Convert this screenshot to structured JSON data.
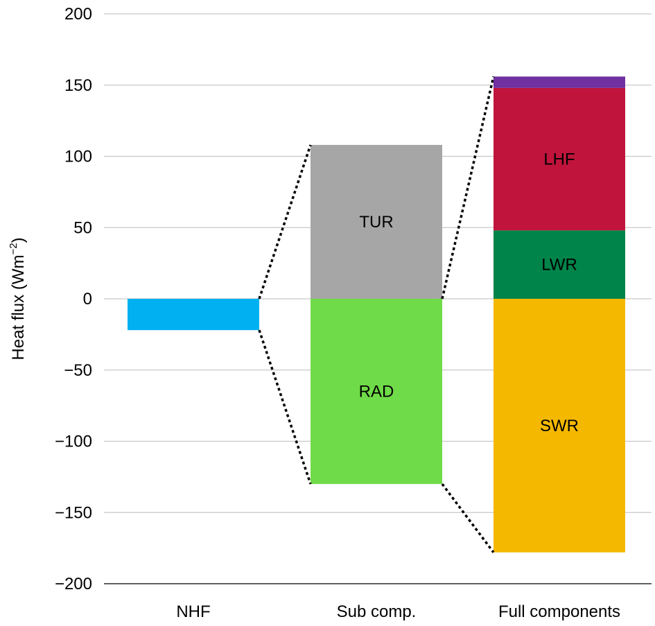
{
  "chart_data": {
    "type": "bar",
    "ylabel": "Heat flux (Wm",
    "ylabel_sup": "−2",
    "ylabel_close": ")",
    "ylim": [
      -200,
      200
    ],
    "yticks": [
      200,
      150,
      100,
      50,
      0,
      -50,
      -100,
      -150,
      -200
    ],
    "ytick_labels": [
      "200",
      "150",
      "100",
      "50",
      "0",
      "−50",
      "−100",
      "−150",
      "−200"
    ],
    "grid": true,
    "categories": [
      "NHF",
      "Sub comp.",
      "Full components"
    ],
    "bars": [
      {
        "category": "NHF",
        "segments": [
          {
            "label": "",
            "from": 0,
            "to": -22,
            "color": "#00b0f0"
          }
        ]
      },
      {
        "category": "Sub comp.",
        "segments": [
          {
            "label": "TUR",
            "from": 0,
            "to": 108,
            "color": "#a6a6a6"
          },
          {
            "label": "RAD",
            "from": 0,
            "to": -130,
            "color": "#70db48"
          }
        ]
      },
      {
        "category": "Full components",
        "segments": [
          {
            "label": "LWR",
            "from": 0,
            "to": 48,
            "color": "#00844a"
          },
          {
            "label": "LHF",
            "from": 48,
            "to": 148,
            "color": "#c0143c"
          },
          {
            "label": "",
            "from": 148,
            "to": 156,
            "color": "#7030a0"
          },
          {
            "label": "SWR",
            "from": 0,
            "to": -178,
            "color": "#f5b800"
          }
        ]
      }
    ]
  }
}
